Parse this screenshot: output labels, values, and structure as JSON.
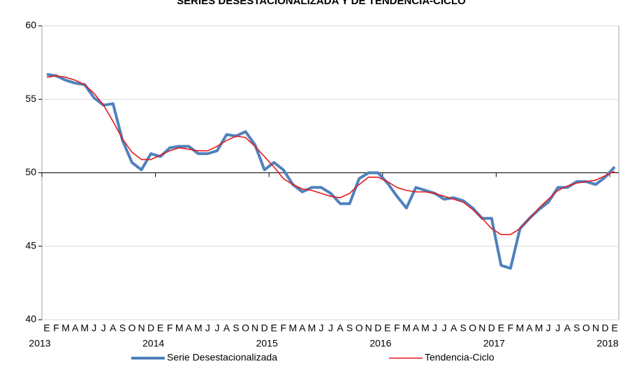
{
  "chart_data": {
    "type": "line",
    "title": "SERIES DESESTACIONALIZADA Y DE TENDENCIA-CICLO",
    "categories": [
      "E",
      "F",
      "M",
      "A",
      "M",
      "J",
      "J",
      "A",
      "S",
      "O",
      "N",
      "D",
      "E",
      "F",
      "M",
      "A",
      "M",
      "J",
      "J",
      "A",
      "S",
      "O",
      "N",
      "D",
      "E",
      "F",
      "M",
      "A",
      "M",
      "J",
      "J",
      "A",
      "S",
      "O",
      "N",
      "D",
      "E",
      "F",
      "M",
      "A",
      "M",
      "J",
      "J",
      "A",
      "S",
      "O",
      "N",
      "D",
      "E",
      "F",
      "M",
      "A",
      "M",
      "J",
      "J",
      "A",
      "S",
      "O",
      "N",
      "D",
      "E"
    ],
    "years": [
      "2013",
      null,
      null,
      null,
      null,
      null,
      null,
      null,
      null,
      null,
      null,
      null,
      "2014",
      null,
      null,
      null,
      null,
      null,
      null,
      null,
      null,
      null,
      null,
      null,
      "2015",
      null,
      null,
      null,
      null,
      null,
      null,
      null,
      null,
      null,
      null,
      null,
      "2016",
      null,
      null,
      null,
      null,
      null,
      null,
      null,
      null,
      null,
      null,
      null,
      "2017",
      null,
      null,
      null,
      null,
      null,
      null,
      null,
      null,
      null,
      null,
      null,
      "2018"
    ],
    "series": [
      {
        "name": "Serie Desestacionalizada",
        "color": "#4f81bd",
        "values": [
          56.7,
          56.6,
          56.3,
          56.1,
          56.0,
          55.1,
          54.6,
          54.7,
          52.2,
          50.7,
          50.2,
          51.3,
          51.1,
          51.7,
          51.8,
          51.8,
          51.3,
          51.3,
          51.5,
          52.6,
          52.5,
          52.8,
          51.9,
          50.2,
          50.7,
          50.2,
          49.2,
          48.7,
          49.0,
          49.0,
          48.6,
          47.9,
          47.9,
          49.6,
          50.0,
          50.0,
          49.3,
          48.4,
          47.6,
          49.0,
          48.8,
          48.6,
          48.2,
          48.3,
          48.1,
          47.6,
          46.9,
          46.9,
          43.7,
          43.5,
          46.2,
          46.9,
          47.5,
          48.0,
          49.0,
          49.0,
          49.4,
          49.4,
          49.2,
          49.7,
          50.4
        ]
      },
      {
        "name": "Tendencia-Ciclo",
        "color": "#e41a1c",
        "values": [
          56.5,
          56.6,
          56.5,
          56.3,
          56.0,
          55.4,
          54.6,
          53.5,
          52.3,
          51.4,
          50.9,
          50.9,
          51.2,
          51.5,
          51.7,
          51.6,
          51.5,
          51.5,
          51.8,
          52.2,
          52.5,
          52.4,
          51.8,
          51.1,
          50.4,
          49.6,
          49.2,
          48.9,
          48.8,
          48.6,
          48.4,
          48.3,
          48.6,
          49.2,
          49.7,
          49.7,
          49.4,
          49.0,
          48.8,
          48.7,
          48.7,
          48.6,
          48.4,
          48.2,
          48.0,
          47.5,
          46.9,
          46.2,
          45.8,
          45.8,
          46.2,
          46.9,
          47.6,
          48.2,
          48.8,
          49.1,
          49.3,
          49.4,
          49.5,
          49.8,
          50.1
        ]
      }
    ],
    "ylim": [
      40,
      60
    ],
    "yticks": [
      40,
      45,
      50,
      55,
      60
    ],
    "grid": true,
    "x_axis_crosses": 50,
    "legend": "bottom"
  }
}
